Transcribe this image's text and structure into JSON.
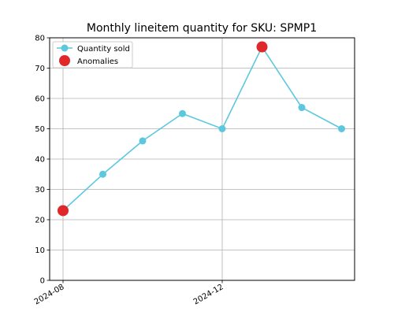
{
  "chart_data": {
    "type": "line",
    "title": "Monthly lineitem quantity for SKU: SPMP1",
    "xlabel": "",
    "ylabel": "",
    "x": [
      "2024-08",
      "2024-09",
      "2024-10",
      "2024-11",
      "2024-12",
      "2025-01",
      "2025-02",
      "2025-03"
    ],
    "x_tick_labels": [
      "2024-08",
      "2024-12"
    ],
    "ylim": [
      0,
      80
    ],
    "y_ticks": [
      0,
      10,
      20,
      30,
      40,
      50,
      60,
      70,
      80
    ],
    "grid": true,
    "legend_position": "upper-left",
    "series": [
      {
        "name": "Quantity sold",
        "values": [
          23,
          35,
          46,
          55,
          50,
          77,
          57,
          50
        ],
        "color": "#5bc8df",
        "marker": "circle"
      },
      {
        "name": "Anomalies",
        "type": "scatter",
        "x": [
          "2024-08",
          "2025-01"
        ],
        "values": [
          23,
          77
        ],
        "color": "#e0282a",
        "marker": "circle"
      }
    ]
  }
}
